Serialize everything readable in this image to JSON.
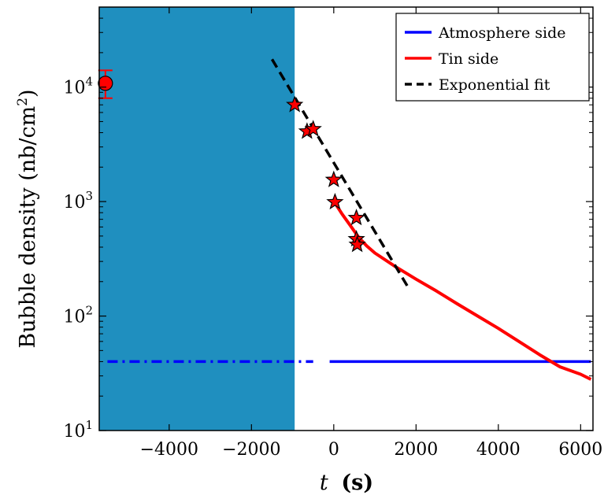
{
  "chart_data": {
    "type": "scatter",
    "title": "",
    "xlabel": "t (s)",
    "xlabel_var": "t",
    "xlabel_unit": "(s)",
    "ylabel": "Bubble density (nb/cm²)",
    "ylabel_main": "Bubble density (nb/cm",
    "ylabel_sup": "2",
    "ylabel_close": ")",
    "xlim": [
      -5700,
      6300
    ],
    "ylim": [
      10,
      50000
    ],
    "yscale": "log",
    "grid": false,
    "legend_position": "top-right",
    "x_ticks": [
      -4000,
      -2000,
      0,
      2000,
      4000,
      6000
    ],
    "x_tick_labels": [
      "−4000",
      "−2000",
      "0",
      "2000",
      "4000",
      "6000"
    ],
    "y_ticks": [
      10,
      100,
      1000,
      10000
    ],
    "y_tick_labels": [
      {
        "base": "10",
        "exp": "1"
      },
      {
        "base": "10",
        "exp": "2"
      },
      {
        "base": "10",
        "exp": "3"
      },
      {
        "base": "10",
        "exp": "4"
      }
    ],
    "shaded_region": {
      "x": [
        -5700,
        -950
      ],
      "color": "#1f8fbf"
    },
    "series": [
      {
        "name": "Atmosphere side",
        "kind": "line",
        "color": "#0000ff",
        "dashed_segment": {
          "x": [
            -5500,
            -500
          ],
          "y": 40
        },
        "solid_segment": {
          "x": [
            -100,
            6250
          ],
          "y": 40
        }
      },
      {
        "name": "Tin side",
        "kind": "line",
        "color": "#ff0000",
        "x": [
          -30,
          200,
          400,
          600,
          800,
          1000,
          1500,
          2000,
          2500,
          3000,
          3500,
          4000,
          4500,
          5000,
          5500,
          6000,
          6250
        ],
        "y": [
          1050,
          780,
          620,
          490,
          410,
          355,
          270,
          210,
          165,
          128,
          100,
          78,
          60,
          46,
          36,
          31,
          28
        ]
      },
      {
        "name": "Exponential fit",
        "kind": "line",
        "color": "#000000",
        "dashed": true,
        "x": [
          -1500,
          1800
        ],
        "y": [
          17500,
          180
        ]
      },
      {
        "name": "",
        "kind": "stars",
        "color": "#ff0000",
        "x": [
          -950,
          -650,
          -500,
          0,
          30,
          550,
          550,
          570
        ],
        "y": [
          7000,
          4100,
          4300,
          1550,
          990,
          720,
          470,
          420
        ]
      },
      {
        "name": "",
        "kind": "errorbar-point",
        "color": "#ff0000",
        "x": -5550,
        "y": 10800,
        "yerr": [
          8000,
          14000
        ]
      }
    ]
  }
}
